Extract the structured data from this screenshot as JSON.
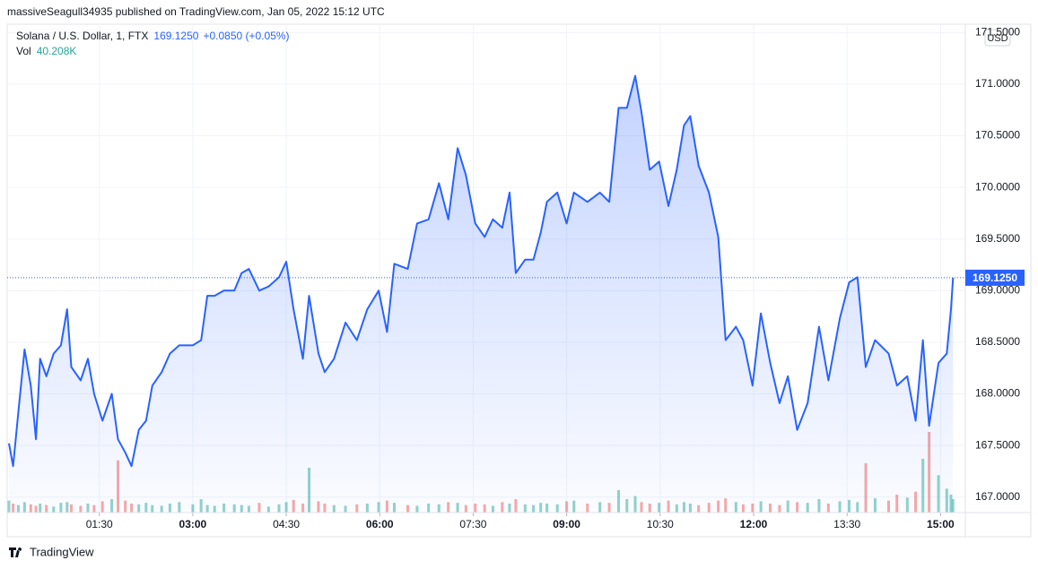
{
  "header": {
    "publisher": "massiveSeagull34935 published on TradingView.com, Jan 05, 2022 15:12 UTC",
    "symbol": "Solana / U.S. Dollar, 1, FTX",
    "change": "+0.0850 (+0.05%)",
    "volume_label": "Vol",
    "volume_value": "40.208K",
    "currency": "USD",
    "brand": "TradingView"
  },
  "chart_data": {
    "type": "area",
    "x": [
      "00:03",
      "00:07",
      "00:12",
      "00:18",
      "00:24",
      "00:29",
      "00:33",
      "00:39",
      "00:46",
      "00:53",
      "00:59",
      "01:03",
      "01:12",
      "01:19",
      "01:25",
      "01:33",
      "01:42",
      "01:48",
      "01:55",
      "02:01",
      "02:08",
      "02:15",
      "02:21",
      "02:30",
      "02:38",
      "02:47",
      "03:00",
      "03:08",
      "03:14",
      "03:21",
      "03:30",
      "03:40",
      "03:47",
      "03:54",
      "04:04",
      "04:13",
      "04:23",
      "04:30",
      "04:37",
      "04:46",
      "04:52",
      "05:01",
      "05:07",
      "05:16",
      "05:27",
      "05:38",
      "05:48",
      "05:59",
      "06:07",
      "06:14",
      "06:27",
      "06:36",
      "06:47",
      "06:57",
      "07:06",
      "07:15",
      "07:23",
      "07:32",
      "07:41",
      "07:49",
      "07:58",
      "08:05",
      "08:11",
      "08:20",
      "08:28",
      "08:35",
      "08:41",
      "08:51",
      "09:00",
      "09:07",
      "09:20",
      "09:32",
      "09:41",
      "09:50",
      "09:58",
      "10:06",
      "10:12",
      "10:20",
      "10:29",
      "10:38",
      "10:46",
      "10:53",
      "10:59",
      "11:07",
      "11:17",
      "11:26",
      "11:33",
      "11:43",
      "11:50",
      "11:59",
      "12:07",
      "12:16",
      "12:25",
      "12:33",
      "12:42",
      "12:52",
      "13:03",
      "13:12",
      "13:23",
      "13:32",
      "13:40",
      "13:48",
      "13:57",
      "14:10",
      "14:18",
      "14:28",
      "14:36",
      "14:43",
      "14:49",
      "14:58",
      "15:06",
      "15:10",
      "15:12"
    ],
    "values": [
      167.52,
      167.3,
      167.82,
      168.43,
      168.08,
      167.56,
      168.34,
      168.17,
      168.39,
      168.47,
      168.82,
      168.26,
      168.13,
      168.34,
      168.0,
      167.74,
      168.0,
      167.56,
      167.43,
      167.3,
      167.65,
      167.74,
      168.08,
      168.21,
      168.39,
      168.47,
      168.47,
      168.52,
      168.95,
      168.95,
      169.0,
      169.0,
      169.17,
      169.21,
      169.0,
      169.04,
      169.13,
      169.28,
      168.82,
      168.34,
      168.95,
      168.39,
      168.21,
      168.34,
      168.69,
      168.52,
      168.82,
      169.0,
      168.6,
      169.26,
      169.21,
      169.65,
      169.69,
      170.04,
      169.69,
      170.38,
      170.12,
      169.65,
      169.52,
      169.69,
      169.61,
      169.95,
      169.17,
      169.3,
      169.3,
      169.56,
      169.86,
      169.95,
      169.65,
      169.95,
      169.86,
      169.95,
      169.86,
      170.77,
      170.77,
      171.08,
      170.73,
      170.17,
      170.25,
      169.82,
      170.17,
      170.6,
      170.69,
      170.21,
      169.95,
      169.52,
      168.52,
      168.65,
      168.52,
      168.08,
      168.78,
      168.3,
      167.91,
      168.17,
      167.65,
      167.91,
      168.65,
      168.13,
      168.73,
      169.08,
      169.13,
      168.26,
      168.52,
      168.39,
      168.08,
      168.17,
      167.74,
      168.52,
      167.69,
      168.3,
      168.39,
      168.82,
      169.125
    ],
    "color": "#2962ff",
    "last_value_label": "169.1250",
    "volume": [
      80,
      60,
      50,
      70,
      55,
      45,
      60,
      50,
      40,
      65,
      70,
      55,
      45,
      60,
      50,
      75,
      90,
      350,
      80,
      60,
      55,
      65,
      50,
      45,
      60,
      70,
      55,
      90,
      50,
      45,
      60,
      55,
      50,
      45,
      65,
      40,
      55,
      70,
      85,
      60,
      300,
      75,
      60,
      50,
      45,
      55,
      60,
      70,
      80,
      65,
      50,
      45,
      60,
      55,
      70,
      65,
      50,
      60,
      55,
      45,
      70,
      60,
      90,
      55,
      50,
      65,
      60,
      55,
      75,
      80,
      60,
      70,
      65,
      150,
      90,
      110,
      70,
      60,
      65,
      80,
      55,
      70,
      60,
      50,
      65,
      80,
      95,
      70,
      55,
      60,
      75,
      60,
      50,
      80,
      70,
      65,
      90,
      60,
      75,
      85,
      70,
      330,
      95,
      80,
      120,
      100,
      140,
      360,
      540,
      250,
      160,
      120,
      90
    ],
    "vlim": [
      0,
      600
    ],
    "volume_colors": {
      "up": "#26a69a",
      "down": "#ef5350"
    },
    "xlim": [
      "00:03",
      "15:23"
    ],
    "xticks": [
      "01:30",
      "03:00",
      "04:30",
      "06:00",
      "07:30",
      "09:00",
      "10:30",
      "12:00",
      "13:30",
      "15:00"
    ],
    "ylim": [
      166.85,
      171.555
    ],
    "yticks": [
      {
        "value": 167,
        "label": "167.0000"
      },
      {
        "value": 167.5,
        "label": "167.5000"
      },
      {
        "value": 168,
        "label": "168.0000"
      },
      {
        "value": 168.5,
        "label": "168.5000"
      },
      {
        "value": 169,
        "label": "169.0000"
      },
      {
        "value": 169.5,
        "label": "169.5000"
      },
      {
        "value": 170,
        "label": "170.0000"
      },
      {
        "value": 170.5,
        "label": "170.5000"
      },
      {
        "value": 171,
        "label": "171.0000"
      },
      {
        "value": 171.5,
        "label": "171.5000"
      }
    ],
    "grid": true
  }
}
